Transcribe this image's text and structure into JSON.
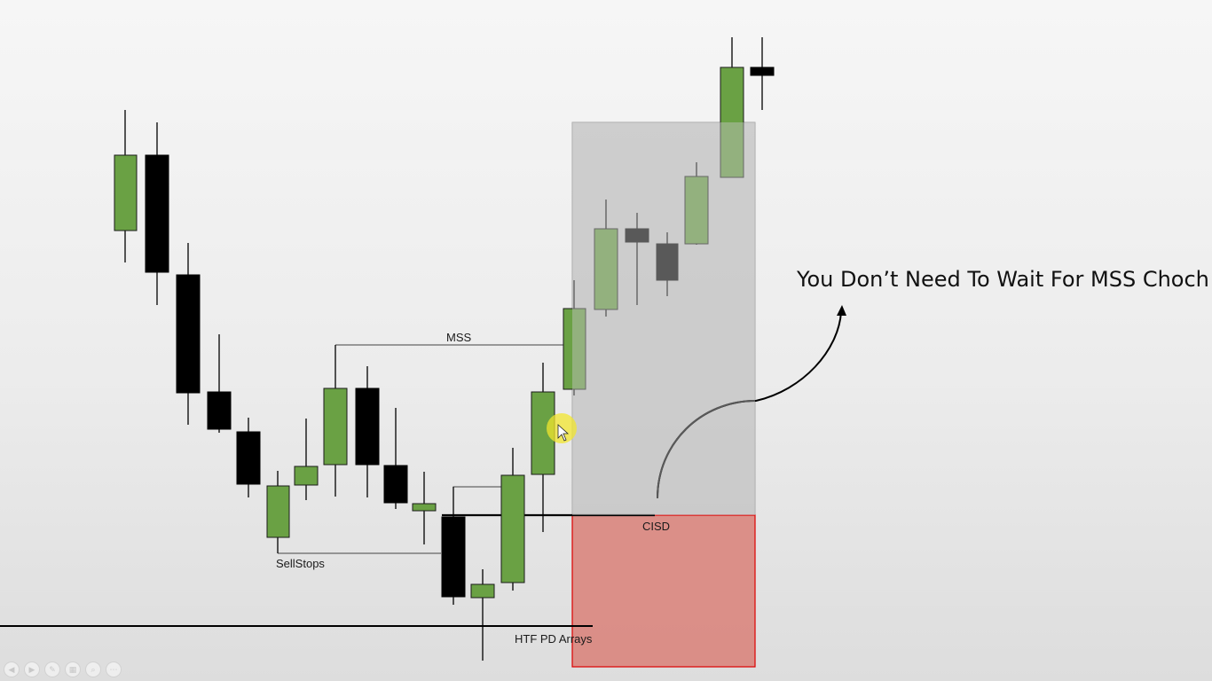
{
  "annotations": {
    "mss": "MSS",
    "sell_stops": "SellStops",
    "cisd": "CISD",
    "htf_pd_arrays": "HTF PD Arrays"
  },
  "headline": "You Don’t Need To Wait For MSS Choch",
  "colors": {
    "bull": "#6aa144",
    "bear": "#000000",
    "premium_zone": "#bcbcbc",
    "discount_zone": "#d98078",
    "discount_zone_border": "#dd0000"
  },
  "toolbar": {
    "buttons": [
      {
        "icon": "previous-icon",
        "glyph": "◀"
      },
      {
        "icon": "next-icon",
        "glyph": "▶"
      },
      {
        "icon": "pen-icon",
        "glyph": "✎"
      },
      {
        "icon": "slides-icon",
        "glyph": "▦"
      },
      {
        "icon": "zoom-icon",
        "glyph": "⌕"
      },
      {
        "icon": "more-icon",
        "glyph": "⋯"
      }
    ]
  }
}
